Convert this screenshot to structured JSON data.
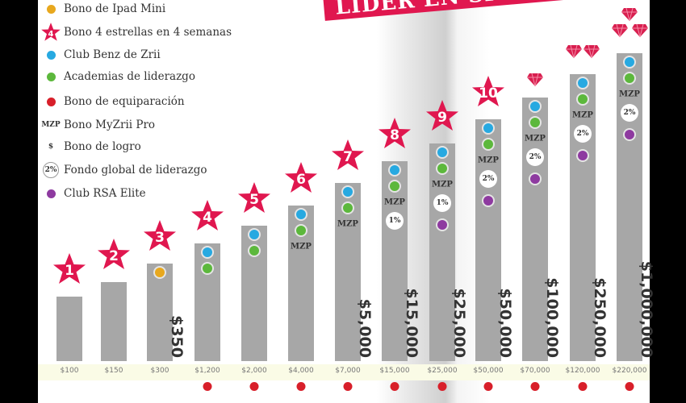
{
  "banner": "LIDER EN SISTEMA",
  "legend": [
    {
      "icon": "yellow-dot-icon",
      "marker": "dot",
      "color": "#e8a81e",
      "label": "Bono de Ipad Mini"
    },
    {
      "icon": "star-icon",
      "marker": "star",
      "marker_text": "4",
      "color": "#e0174f",
      "label": "Bono 4 estrellas en 4 semanas"
    },
    {
      "icon": "blue-dot-icon",
      "marker": "dot",
      "color": "#27a9e1",
      "label": "Club Benz de Zrii"
    },
    {
      "icon": "green-dot-icon",
      "marker": "dot",
      "color": "#5cb83c",
      "label": "Academias de liderazgo"
    },
    {
      "icon": "red-dot-icon",
      "marker": "dot",
      "color": "#d81f2a",
      "label": "Bono de equiparación"
    },
    {
      "icon": "mzp-icon",
      "marker": "text",
      "marker_text": "MZP",
      "label": "Bono MyZrii Pro"
    },
    {
      "icon": "dollar-icon",
      "marker": "text",
      "marker_text": "$",
      "label": "Bono de logro"
    },
    {
      "icon": "percent-badge-icon",
      "marker": "pct",
      "marker_text": "2%",
      "label": "Fondo global de liderazgo"
    },
    {
      "icon": "purple-dot-icon",
      "marker": "dot",
      "color": "#8e3aa0",
      "label": "Club RSA Elite"
    }
  ],
  "colors": {
    "star": "#e0174f",
    "gem": "#d81f4f",
    "bar": "#a7a7a7",
    "yellow": "#e8a81e",
    "blue": "#27a9e1",
    "green": "#5cb83c",
    "purple": "#8e3aa0",
    "red": "#d81f2a"
  },
  "levels": [
    {
      "rank": "1",
      "gems": 0,
      "volume": "$100",
      "amount": "",
      "items": [],
      "red": false
    },
    {
      "rank": "2",
      "gems": 0,
      "volume": "$150",
      "amount": "",
      "items": [],
      "red": false
    },
    {
      "rank": "3",
      "gems": 0,
      "volume": "$300",
      "amount": "$350",
      "items": [
        "yellow"
      ],
      "red": false
    },
    {
      "rank": "4",
      "gems": 0,
      "volume": "$1,200",
      "amount": "",
      "items": [
        "blue",
        "green"
      ],
      "red": true
    },
    {
      "rank": "5",
      "gems": 0,
      "volume": "$2,000",
      "amount": "",
      "items": [
        "blue",
        "green"
      ],
      "red": true
    },
    {
      "rank": "6",
      "gems": 0,
      "volume": "$4,000",
      "amount": "",
      "items": [
        "blue",
        "green",
        "MZP"
      ],
      "red": true
    },
    {
      "rank": "7",
      "gems": 0,
      "volume": "$7,000",
      "amount": "$5,000",
      "items": [
        "blue",
        "green",
        "MZP"
      ],
      "red": true
    },
    {
      "rank": "8",
      "gems": 0,
      "volume": "$15,000",
      "amount": "$15,000",
      "items": [
        "blue",
        "green",
        "MZP",
        "1%"
      ],
      "red": true
    },
    {
      "rank": "9",
      "gems": 0,
      "volume": "$25,000",
      "amount": "$25,000",
      "items": [
        "blue",
        "green",
        "MZP",
        "1%",
        "purple"
      ],
      "red": true
    },
    {
      "rank": "10",
      "gems": 0,
      "volume": "$50,000",
      "amount": "$50,000",
      "items": [
        "blue",
        "green",
        "MZP",
        "2%",
        "purple"
      ],
      "red": true
    },
    {
      "rank": "",
      "gems": 1,
      "volume": "$70,000",
      "amount": "$100,000",
      "items": [
        "blue",
        "green",
        "MZP",
        "2%",
        "purple"
      ],
      "red": true
    },
    {
      "rank": "",
      "gems": 2,
      "volume": "$120,000",
      "amount": "$250,000",
      "items": [
        "blue",
        "green",
        "MZP",
        "2%",
        "purple"
      ],
      "red": true
    },
    {
      "rank": "",
      "gems": 3,
      "volume": "$220,000",
      "amount": "$1,000,000",
      "items": [
        "blue",
        "green",
        "MZP",
        "2%",
        "purple"
      ],
      "red": true
    }
  ]
}
